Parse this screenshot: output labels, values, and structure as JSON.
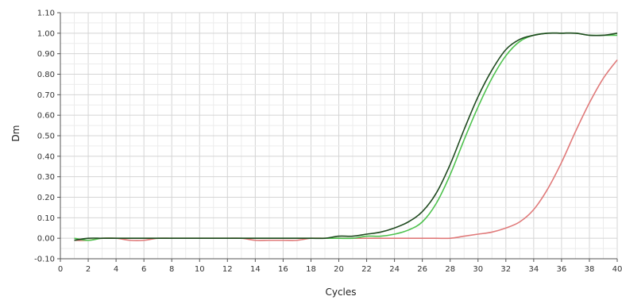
{
  "chart_data": {
    "type": "line",
    "title": "",
    "xlabel": "Cycles",
    "ylabel": "Dm",
    "xlim": [
      0,
      40
    ],
    "ylim": [
      -0.1,
      1.1
    ],
    "x_ticks": [
      "0",
      "2",
      "4",
      "6",
      "8",
      "10",
      "12",
      "14",
      "16",
      "18",
      "20",
      "22",
      "24",
      "26",
      "28",
      "30",
      "32",
      "34",
      "36",
      "38",
      "40"
    ],
    "y_ticks": [
      "-0.10",
      "0.00",
      "0.10",
      "0.20",
      "0.30",
      "0.40",
      "0.50",
      "0.60",
      "0.70",
      "0.80",
      "0.90",
      "1.00",
      "1.10"
    ],
    "grid": true,
    "legend": "none",
    "series": [
      {
        "color": "#e07a7a",
        "x": [
          1,
          2,
          3,
          4,
          5,
          6,
          7,
          8,
          9,
          10,
          11,
          12,
          13,
          14,
          15,
          16,
          17,
          18,
          19,
          20,
          21,
          22,
          23,
          24,
          25,
          26,
          27,
          28,
          29,
          30,
          31,
          32,
          33,
          34,
          35,
          36,
          37,
          38,
          39,
          40
        ],
        "y": [
          -0.01,
          -0.01,
          0.0,
          0.0,
          -0.01,
          -0.01,
          0.0,
          0.0,
          0.0,
          0.0,
          0.0,
          0.0,
          0.0,
          -0.01,
          -0.01,
          -0.01,
          -0.01,
          0.0,
          0.0,
          0.0,
          0.0,
          0.0,
          0.0,
          0.0,
          0.0,
          0.0,
          0.0,
          0.0,
          0.01,
          0.02,
          0.03,
          0.05,
          0.08,
          0.14,
          0.24,
          0.37,
          0.52,
          0.66,
          0.78,
          0.87
        ]
      },
      {
        "color": "#4ec24e",
        "x": [
          1,
          2,
          3,
          4,
          5,
          6,
          7,
          8,
          9,
          10,
          11,
          12,
          13,
          14,
          15,
          16,
          17,
          18,
          19,
          20,
          21,
          22,
          23,
          24,
          25,
          26,
          27,
          28,
          29,
          30,
          31,
          32,
          33,
          34,
          35,
          36,
          37,
          38,
          39,
          40
        ],
        "y": [
          0.0,
          -0.01,
          0.0,
          0.0,
          0.0,
          0.0,
          0.0,
          0.0,
          0.0,
          0.0,
          0.0,
          0.0,
          0.0,
          0.0,
          0.0,
          0.0,
          0.0,
          0.0,
          0.0,
          0.0,
          0.0,
          0.01,
          0.01,
          0.02,
          0.04,
          0.08,
          0.17,
          0.31,
          0.48,
          0.64,
          0.78,
          0.89,
          0.96,
          0.99,
          1.0,
          1.0,
          1.0,
          0.99,
          0.99,
          0.99
        ]
      },
      {
        "color": "#1f4a1f",
        "x": [
          1,
          2,
          3,
          4,
          5,
          6,
          7,
          8,
          9,
          10,
          11,
          12,
          13,
          14,
          15,
          16,
          17,
          18,
          19,
          20,
          21,
          22,
          23,
          24,
          25,
          26,
          27,
          28,
          29,
          30,
          31,
          32,
          33,
          34,
          35,
          36,
          37,
          38,
          39,
          40
        ],
        "y": [
          -0.01,
          0.0,
          0.0,
          0.0,
          0.0,
          0.0,
          0.0,
          0.0,
          0.0,
          0.0,
          0.0,
          0.0,
          0.0,
          0.0,
          0.0,
          0.0,
          0.0,
          0.0,
          0.0,
          0.01,
          0.01,
          0.02,
          0.03,
          0.05,
          0.08,
          0.13,
          0.22,
          0.36,
          0.53,
          0.69,
          0.82,
          0.92,
          0.97,
          0.99,
          1.0,
          1.0,
          1.0,
          0.99,
          0.99,
          1.0
        ]
      }
    ]
  }
}
